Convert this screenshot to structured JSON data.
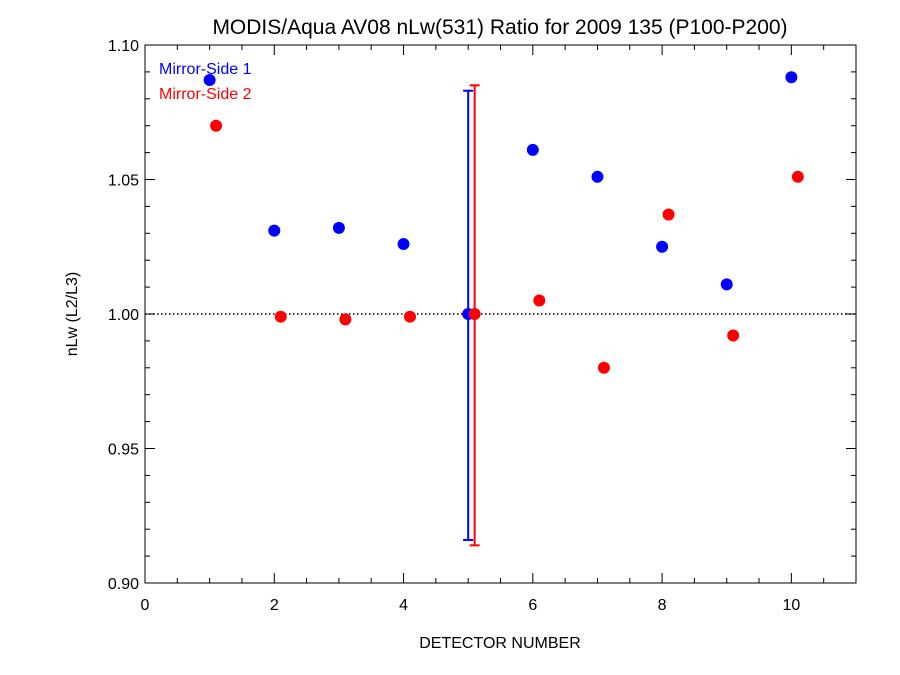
{
  "chart_data": {
    "type": "scatter",
    "title": "MODIS/Aqua AV08 nLw(531) Ratio for 2009 135 (P100-P200)",
    "xlabel": "DETECTOR NUMBER",
    "ylabel": "nLw (L2/L3)",
    "xlim": [
      0,
      11
    ],
    "ylim": [
      0.9,
      1.1
    ],
    "x_ticks": [
      0,
      2,
      4,
      6,
      8,
      10
    ],
    "x_tick_labels": [
      "0",
      "2",
      "4",
      "6",
      "8",
      "10"
    ],
    "y_ticks": [
      0.9,
      0.95,
      1.0,
      1.05,
      1.1
    ],
    "y_tick_labels": [
      "0.90",
      "0.95",
      "1.00",
      "1.05",
      "1.10"
    ],
    "reference_line": {
      "y": 1.0,
      "style": "dotted"
    },
    "legend_position": "top-left",
    "grid": false,
    "series": [
      {
        "name": "Mirror-Side 1",
        "color": "#0000ff",
        "x": [
          1,
          2,
          3,
          4,
          5,
          6,
          7,
          8,
          9,
          10
        ],
        "y": [
          1.087,
          1.031,
          1.032,
          1.026,
          1.0,
          1.061,
          1.051,
          1.025,
          1.011,
          1.088
        ],
        "error_bar": {
          "x": 5,
          "low": 0.916,
          "high": 1.083
        }
      },
      {
        "name": "Mirror-Side 2",
        "color": "#ff0000",
        "x": [
          1.1,
          2.1,
          3.1,
          4.1,
          5.1,
          6.1,
          7.1,
          8.1,
          9.1,
          10.1
        ],
        "y": [
          1.07,
          0.999,
          0.998,
          0.999,
          1.0,
          1.005,
          0.98,
          1.037,
          0.992,
          1.051
        ],
        "error_bar": {
          "x": 5.1,
          "low": 0.914,
          "high": 1.085
        }
      }
    ]
  }
}
